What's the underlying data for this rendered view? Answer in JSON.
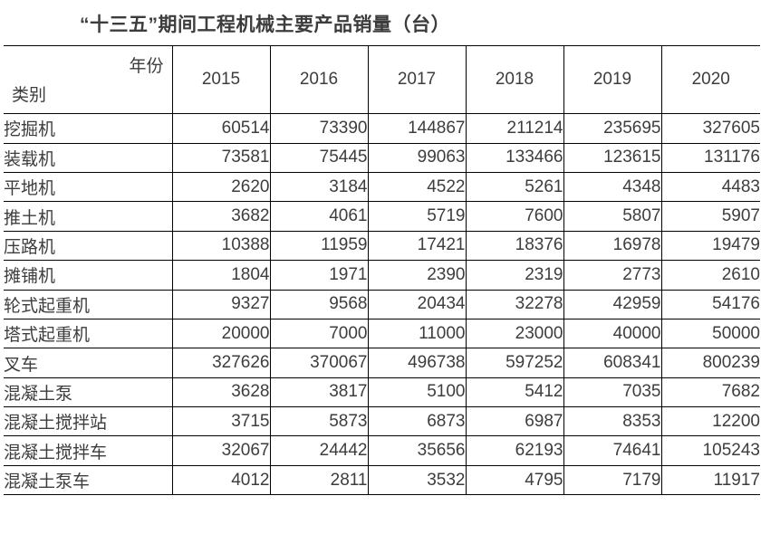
{
  "chart_data": {
    "type": "table",
    "title": "“十三五”期间工程机械主要产品销量（台）",
    "column_axis_label": "年份",
    "row_axis_label": "类别",
    "columns": [
      "2015",
      "2016",
      "2017",
      "2018",
      "2019",
      "2020"
    ],
    "rows": [
      {
        "category": "挖掘机",
        "values": [
          60514,
          73390,
          144867,
          211214,
          235695,
          327605
        ]
      },
      {
        "category": "装载机",
        "values": [
          73581,
          75445,
          99063,
          133466,
          123615,
          131176
        ]
      },
      {
        "category": "平地机",
        "values": [
          2620,
          3184,
          4522,
          5261,
          4348,
          4483
        ]
      },
      {
        "category": "推土机",
        "values": [
          3682,
          4061,
          5719,
          7600,
          5807,
          5907
        ]
      },
      {
        "category": "压路机",
        "values": [
          10388,
          11959,
          17421,
          18376,
          16978,
          19479
        ]
      },
      {
        "category": "摊铺机",
        "values": [
          1804,
          1971,
          2390,
          2319,
          2773,
          2610
        ]
      },
      {
        "category": "轮式起重机",
        "values": [
          9327,
          9568,
          20434,
          32278,
          42959,
          54176
        ]
      },
      {
        "category": "塔式起重机",
        "values": [
          20000,
          7000,
          11000,
          23000,
          40000,
          50000
        ]
      },
      {
        "category": "叉车",
        "values": [
          327626,
          370067,
          496738,
          597252,
          608341,
          800239
        ]
      },
      {
        "category": "混凝土泵",
        "values": [
          3628,
          3817,
          5100,
          5412,
          7035,
          7682
        ]
      },
      {
        "category": "混凝土搅拌站",
        "values": [
          3715,
          5873,
          6873,
          6987,
          8353,
          12200
        ]
      },
      {
        "category": "混凝土搅拌车",
        "values": [
          32067,
          24442,
          35656,
          62193,
          74641,
          105243
        ]
      },
      {
        "category": "混凝土泵车",
        "values": [
          4012,
          2811,
          3532,
          4795,
          7179,
          11917
        ]
      }
    ]
  },
  "colors": {
    "text": "#3d3d3d",
    "border": "#000000",
    "background": "#ffffff"
  }
}
